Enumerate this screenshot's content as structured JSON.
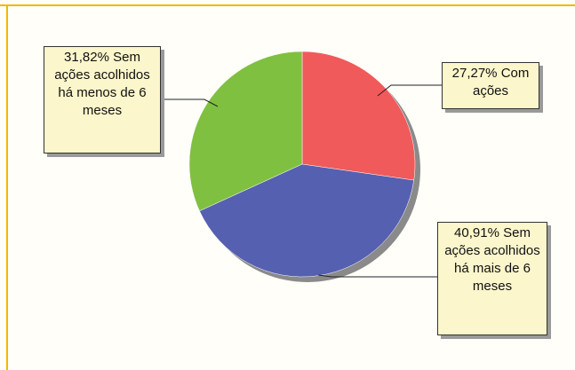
{
  "chart_data": {
    "type": "pie",
    "categories": [
      "Com ações",
      "Sem ações acolhidos há mais de 6 meses",
      "Sem ações acolhidos há menos de 6 meses"
    ],
    "values": [
      27.27,
      40.91,
      31.82
    ],
    "value_labels": [
      "27,27%",
      "40,91%",
      "31,82%"
    ],
    "colors": [
      "#f05a5a",
      "#5560b0",
      "#80c040"
    ]
  }
}
